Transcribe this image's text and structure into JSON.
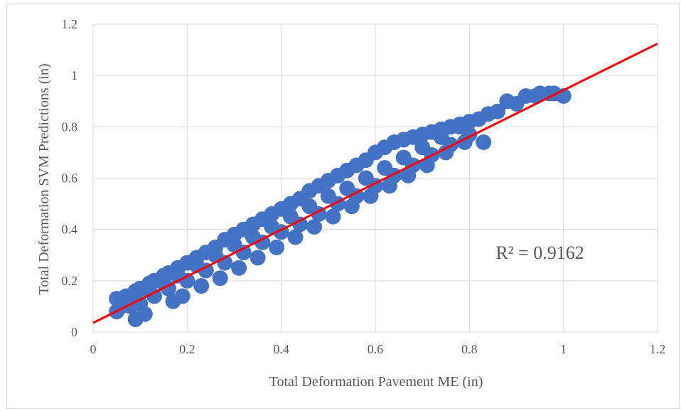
{
  "chart_data": {
    "type": "scatter",
    "title": "",
    "xlabel": "Total Deformation Pavement ME (in)",
    "ylabel": "Total Deformation SVM Predictions (in)",
    "xlim": [
      0,
      1.2
    ],
    "ylim": [
      0,
      1.2
    ],
    "x_ticks": [
      "0",
      "0.2",
      "0.4",
      "0.6",
      "0.8",
      "1",
      "1.2"
    ],
    "y_ticks": [
      "0",
      "0.2",
      "0.4",
      "0.6",
      "0.8",
      "1",
      "1.2"
    ],
    "grid": true,
    "series": [
      {
        "color": "#4472c4",
        "x": [
          0.05,
          0.07,
          0.09,
          0.1,
          0.12,
          0.13,
          0.15,
          0.16,
          0.18,
          0.2,
          0.22,
          0.24,
          0.26,
          0.28,
          0.3,
          0.32,
          0.34,
          0.36,
          0.38,
          0.4,
          0.42,
          0.44,
          0.46,
          0.48,
          0.5,
          0.52,
          0.54,
          0.56,
          0.58,
          0.6,
          0.62,
          0.64,
          0.66,
          0.68,
          0.7,
          0.72,
          0.74,
          0.76,
          0.78,
          0.8,
          0.84,
          0.88,
          0.92,
          0.95,
          0.97,
          1.0,
          0.05,
          0.08,
          0.1,
          0.13,
          0.16,
          0.2,
          0.24,
          0.28,
          0.32,
          0.36,
          0.4,
          0.44,
          0.48,
          0.52,
          0.56,
          0.6,
          0.64,
          0.68,
          0.72,
          0.76,
          0.8,
          0.06,
          0.09,
          0.12,
          0.15,
          0.18,
          0.22,
          0.26,
          0.3,
          0.34,
          0.38,
          0.42,
          0.46,
          0.5,
          0.54,
          0.58,
          0.62,
          0.66,
          0.7,
          0.74,
          0.78,
          0.82,
          0.86,
          0.9,
          0.94,
          0.98,
          0.09,
          0.11,
          0.17,
          0.19,
          0.23,
          0.27,
          0.31,
          0.35,
          0.39,
          0.43,
          0.47,
          0.51,
          0.55,
          0.59,
          0.63,
          0.67,
          0.71,
          0.75,
          0.79,
          0.83
        ],
        "y": [
          0.13,
          0.14,
          0.16,
          0.17,
          0.19,
          0.2,
          0.22,
          0.23,
          0.25,
          0.27,
          0.29,
          0.31,
          0.33,
          0.36,
          0.38,
          0.4,
          0.42,
          0.44,
          0.46,
          0.48,
          0.5,
          0.52,
          0.55,
          0.57,
          0.59,
          0.61,
          0.63,
          0.65,
          0.67,
          0.7,
          0.72,
          0.74,
          0.75,
          0.76,
          0.77,
          0.78,
          0.79,
          0.8,
          0.81,
          0.82,
          0.85,
          0.9,
          0.92,
          0.93,
          0.93,
          0.92,
          0.08,
          0.1,
          0.11,
          0.14,
          0.17,
          0.2,
          0.24,
          0.27,
          0.31,
          0.35,
          0.39,
          0.42,
          0.46,
          0.5,
          0.53,
          0.57,
          0.61,
          0.65,
          0.69,
          0.73,
          0.77,
          0.1,
          0.13,
          0.16,
          0.19,
          0.22,
          0.26,
          0.3,
          0.34,
          0.37,
          0.41,
          0.45,
          0.49,
          0.53,
          0.56,
          0.6,
          0.64,
          0.68,
          0.72,
          0.76,
          0.8,
          0.83,
          0.86,
          0.89,
          0.92,
          0.93,
          0.05,
          0.07,
          0.12,
          0.14,
          0.18,
          0.21,
          0.25,
          0.29,
          0.33,
          0.37,
          0.41,
          0.45,
          0.49,
          0.53,
          0.57,
          0.61,
          0.65,
          0.7,
          0.74,
          0.74
        ]
      }
    ],
    "trendline": {
      "color": "#ff0000",
      "x": [
        0,
        1.2
      ],
      "y": [
        0.036,
        1.124
      ]
    },
    "annotations": [
      {
        "text": "R² = 0.9162",
        "x": 0.95,
        "y": 0.285
      }
    ]
  }
}
